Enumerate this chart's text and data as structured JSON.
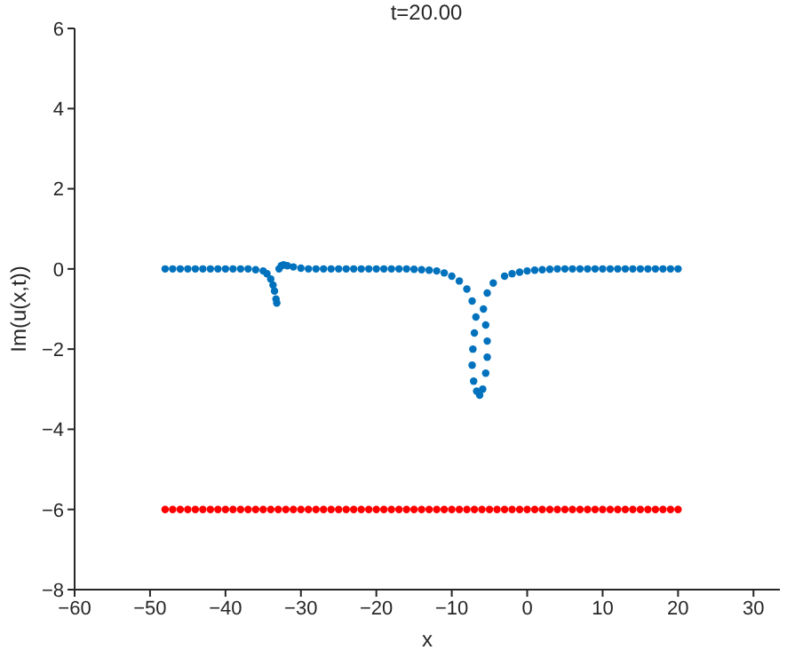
{
  "chart_data": {
    "type": "scatter",
    "title": "t=20.00",
    "xlabel": "x",
    "ylabel": "Im(u(x,t))",
    "xlim": [
      -60,
      33.5
    ],
    "xticks": [
      -60,
      -50,
      -40,
      -30,
      -20,
      -10,
      0,
      10,
      20,
      30
    ],
    "ylim": [
      -8,
      6
    ],
    "yticks": [
      -8,
      -6,
      -4,
      -2,
      0,
      2,
      4,
      6
    ],
    "grid": false,
    "legend": false,
    "marker": "circle",
    "series": [
      {
        "color": "#0072bd",
        "x": [
          -48,
          -47,
          -46,
          -45,
          -44,
          -43,
          -42,
          -41,
          -40,
          -39,
          -38,
          -37,
          -36,
          -35,
          -34.5,
          -34,
          -33.7,
          -33.5,
          -33.3,
          -33.2,
          -32.9,
          -32.6,
          -32.3,
          -31.8,
          -31,
          -30,
          -29,
          -28,
          -27,
          -26,
          -25,
          -24,
          -23,
          -22,
          -21,
          -20,
          -19,
          -18,
          -17,
          -16,
          -15,
          -14,
          -13,
          -12,
          -11,
          -10,
          -9,
          -8,
          -7.3,
          -6.8,
          -7.0,
          -7.2,
          -7.3,
          -7.1,
          -6.7,
          -6.3,
          -5.9,
          -5.5,
          -5.3,
          -5.3,
          -5.5,
          -5.8,
          -5.3,
          -4.5,
          -3,
          -2,
          -1,
          0,
          1,
          2,
          3,
          4,
          5,
          6,
          7,
          8,
          9,
          10,
          11,
          12,
          13,
          14,
          15,
          16,
          17,
          18,
          19,
          20
        ],
        "values": [
          0,
          0,
          0,
          0,
          0,
          0,
          0,
          0,
          0,
          0,
          0,
          0,
          -0.02,
          -0.05,
          -0.12,
          -0.25,
          -0.4,
          -0.55,
          -0.75,
          -0.85,
          0.0,
          0.08,
          0.1,
          0.08,
          0.05,
          0.02,
          0,
          0,
          0,
          0,
          0,
          0,
          0,
          0,
          0,
          0,
          0,
          0,
          0,
          0,
          -0.01,
          -0.02,
          -0.03,
          -0.05,
          -0.1,
          -0.18,
          -0.3,
          -0.5,
          -0.8,
          -1.2,
          -1.6,
          -2.0,
          -2.4,
          -2.8,
          -3.05,
          -3.15,
          -3.0,
          -2.6,
          -2.2,
          -1.8,
          -1.4,
          -1.0,
          -0.6,
          -0.35,
          -0.18,
          -0.12,
          -0.08,
          -0.05,
          -0.03,
          -0.02,
          -0.01,
          0,
          0,
          0,
          0,
          0,
          0,
          0,
          0,
          0,
          0,
          0,
          0,
          0,
          0,
          0,
          0,
          0
        ]
      },
      {
        "color": "#ff0000",
        "x": [
          -48,
          -47,
          -46,
          -45,
          -44,
          -43,
          -42,
          -41,
          -40,
          -39,
          -38,
          -37,
          -36,
          -35,
          -34,
          -33,
          -32,
          -31,
          -30,
          -29,
          -28,
          -27,
          -26,
          -25,
          -24,
          -23,
          -22,
          -21,
          -20,
          -19,
          -18,
          -17,
          -16,
          -15,
          -14,
          -13,
          -12,
          -11,
          -10,
          -9,
          -8,
          -7,
          -6,
          -5,
          -4,
          -3,
          -2,
          -1,
          0,
          1,
          2,
          3,
          4,
          5,
          6,
          7,
          8,
          9,
          10,
          11,
          12,
          13,
          14,
          15,
          16,
          17,
          18,
          19,
          20
        ],
        "values": [
          -6,
          -6,
          -6,
          -6,
          -6,
          -6,
          -6,
          -6,
          -6,
          -6,
          -6,
          -6,
          -6,
          -6,
          -6,
          -6,
          -6,
          -6,
          -6,
          -6,
          -6,
          -6,
          -6,
          -6,
          -6,
          -6,
          -6,
          -6,
          -6,
          -6,
          -6,
          -6,
          -6,
          -6,
          -6,
          -6,
          -6,
          -6,
          -6,
          -6,
          -6,
          -6,
          -6,
          -6,
          -6,
          -6,
          -6,
          -6,
          -6,
          -6,
          -6,
          -6,
          -6,
          -6,
          -6,
          -6,
          -6,
          -6,
          -6,
          -6,
          -6,
          -6,
          -6,
          -6,
          -6,
          -6,
          -6,
          -6,
          -6
        ]
      }
    ]
  }
}
